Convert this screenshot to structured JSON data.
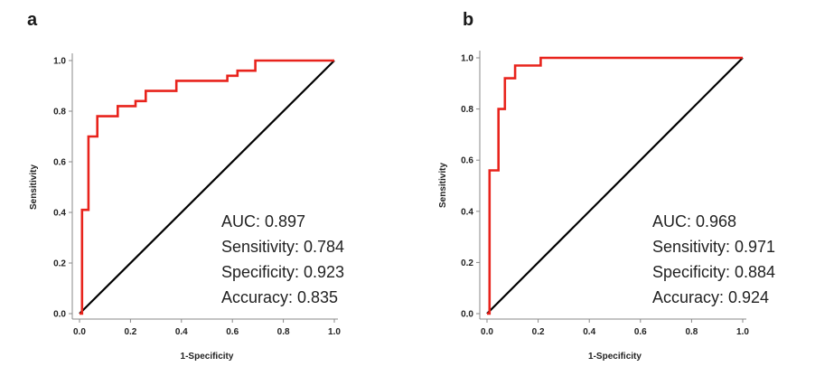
{
  "chart_data": [
    {
      "panel_label": "a",
      "type": "line",
      "title": "",
      "xlabel": "1-Specificity",
      "ylabel": "Sensitivity",
      "xlim": [
        0,
        1
      ],
      "ylim": [
        0,
        1
      ],
      "xticks": [
        "0.0",
        "0.2",
        "0.4",
        "0.6",
        "0.8",
        "1.0"
      ],
      "yticks": [
        "0.0",
        "0.2",
        "0.4",
        "0.6",
        "0.8",
        "1.0"
      ],
      "grid": false,
      "series": [
        {
          "name": "ROC curve",
          "color": "#e8231c",
          "step": true,
          "x": [
            0,
            0.01,
            0.01,
            0.035,
            0.035,
            0.07,
            0.07,
            0.15,
            0.15,
            0.22,
            0.22,
            0.26,
            0.26,
            0.38,
            0.38,
            0.58,
            0.58,
            0.62,
            0.62,
            0.69,
            0.69,
            1.0
          ],
          "y": [
            0,
            0,
            0.41,
            0.41,
            0.7,
            0.7,
            0.78,
            0.78,
            0.82,
            0.82,
            0.84,
            0.84,
            0.88,
            0.88,
            0.92,
            0.92,
            0.94,
            0.94,
            0.96,
            0.96,
            1.0,
            1.0
          ]
        },
        {
          "name": "Reference line",
          "color": "#000000",
          "step": false,
          "x": [
            0,
            1
          ],
          "y": [
            0,
            1
          ]
        }
      ],
      "stats": [
        {
          "label": "AUC:",
          "value": "0.897"
        },
        {
          "label": "Sensitivity:",
          "value": "0.784"
        },
        {
          "label": "Specificity:",
          "value": "0.923"
        },
        {
          "label": "Accuracy:",
          "value": "0.835"
        }
      ]
    },
    {
      "panel_label": "b",
      "type": "line",
      "title": "",
      "xlabel": "1-Specificity",
      "ylabel": "Sensitivity",
      "xlim": [
        0,
        1
      ],
      "ylim": [
        0,
        1
      ],
      "xticks": [
        "0.0",
        "0.2",
        "0.4",
        "0.6",
        "0.8",
        "1.0"
      ],
      "yticks": [
        "0.0",
        "0.2",
        "0.4",
        "0.6",
        "0.8",
        "1.0"
      ],
      "grid": false,
      "series": [
        {
          "name": "ROC curve",
          "color": "#e8231c",
          "step": true,
          "x": [
            0,
            0.01,
            0.01,
            0.045,
            0.045,
            0.07,
            0.07,
            0.11,
            0.11,
            0.21,
            0.21,
            1.0
          ],
          "y": [
            0,
            0,
            0.56,
            0.56,
            0.8,
            0.8,
            0.92,
            0.92,
            0.97,
            0.97,
            1.0,
            1.0
          ]
        },
        {
          "name": "Reference line",
          "color": "#000000",
          "step": false,
          "x": [
            0,
            1
          ],
          "y": [
            0,
            1
          ]
        }
      ],
      "stats": [
        {
          "label": "AUC:",
          "value": "0.968"
        },
        {
          "label": "Sensitivity:",
          "value": "0.971"
        },
        {
          "label": "Specificity:",
          "value": "0.884"
        },
        {
          "label": "Accuracy:",
          "value": "0.924"
        }
      ]
    }
  ]
}
